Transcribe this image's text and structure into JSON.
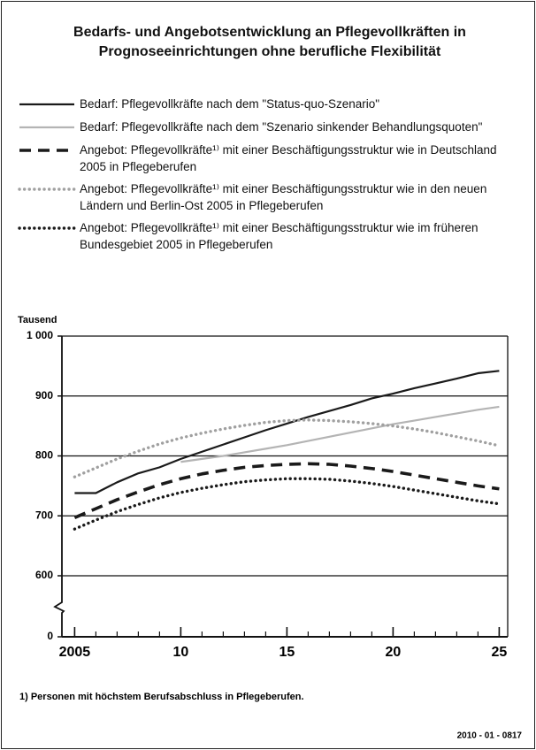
{
  "chart_data": {
    "type": "line",
    "title": "Bedarfs- und Angebotsentwicklung an Pflegevollkräften in Prognoseeinrichtungen ohne berufliche Flexibilität",
    "y_unit_label": "Tausend",
    "footnote": "1) Personen mit höchstem Berufsabschluss in Pflegeberufen.",
    "code": "2010 - 01 - 0817",
    "x": [
      2005,
      2006,
      2007,
      2008,
      2009,
      2010,
      2011,
      2012,
      2013,
      2014,
      2015,
      2016,
      2017,
      2018,
      2019,
      2020,
      2021,
      2022,
      2023,
      2024,
      2025
    ],
    "xlim": [
      2004.4,
      2025.4
    ],
    "xticks": [
      2005,
      {
        "value": 2010,
        "label": "10"
      },
      {
        "value": 2015,
        "label": "15"
      },
      {
        "value": 2020,
        "label": "20"
      },
      {
        "value": 2025,
        "label": "25"
      }
    ],
    "ylim": [
      0,
      1000
    ],
    "y_break": [
      0,
      600
    ],
    "yticks": [
      0,
      600,
      700,
      800,
      900,
      {
        "value": 1000,
        "label": "1 000"
      }
    ],
    "grid": true,
    "series": [
      {
        "name": "Bedarf: Pflegevollkräfte nach dem \"Status-quo-Szenario\"",
        "color": "#1a1a1a",
        "style": "solid",
        "values": [
          738,
          738,
          756,
          771,
          781,
          795,
          807,
          819,
          831,
          843,
          854,
          865,
          875,
          885,
          896,
          904,
          913,
          921,
          929,
          938,
          942
        ]
      },
      {
        "name": "Bedarf: Pflegevollkräfte nach dem \"Szenario sinkender Behandlungsquoten\"",
        "color": "#b4b4b4",
        "style": "solid",
        "values": [
          null,
          null,
          null,
          null,
          null,
          790,
          795,
          800,
          806,
          812,
          818,
          825,
          832,
          839,
          846,
          853,
          859,
          865,
          871,
          877,
          882
        ]
      },
      {
        "name": "Angebot: Pflegevollkräfte¹⁾ mit einer Beschäftigungsstruktur wie in Deutschland 2005 in Pflegeberufen",
        "color": "#1a1a1a",
        "style": "dashed",
        "values": [
          697,
          712,
          727,
          740,
          752,
          762,
          770,
          776,
          781,
          784,
          786,
          787,
          786,
          783,
          779,
          774,
          768,
          762,
          756,
          750,
          745
        ]
      },
      {
        "name": "Angebot: Pflegevollkräfte¹⁾ mit einer Beschäftigungsstruktur wie in den neuen Ländern und Berlin-Ost 2005 in Pflegeberufen",
        "color": "#a0a0a0",
        "style": "dotted",
        "values": [
          765,
          780,
          795,
          808,
          820,
          830,
          838,
          845,
          851,
          856,
          859,
          860,
          859,
          857,
          854,
          850,
          845,
          839,
          832,
          825,
          817
        ]
      },
      {
        "name": "Angebot: Pflegevollkräfte¹⁾ mit einer Beschäftigungsstruktur wie im früheren Bundesgebiet 2005 in Pflegeberufen",
        "color": "#1a1a1a",
        "style": "dotted",
        "values": [
          678,
          693,
          707,
          719,
          730,
          739,
          746,
          752,
          757,
          760,
          762,
          762,
          761,
          758,
          754,
          749,
          743,
          737,
          731,
          725,
          720
        ]
      }
    ]
  }
}
